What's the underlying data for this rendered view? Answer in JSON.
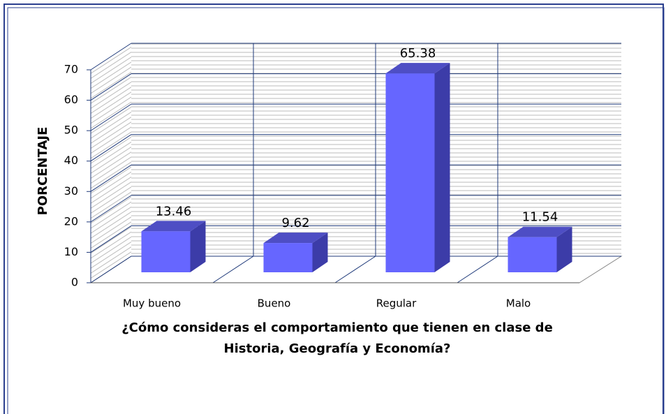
{
  "chart_data": {
    "type": "bar3d",
    "categories": [
      "Muy bueno",
      "Bueno",
      "Regular",
      "Malo"
    ],
    "values": [
      13.46,
      9.62,
      65.38,
      11.54
    ],
    "color": "#6666ff",
    "ylabel": "PORCENTAJE",
    "xlabel": [
      "¿Cómo consideras el comportamiento que tienen en clase de",
      "Historia, Geografía y Economía?"
    ],
    "ylim": [
      0,
      70
    ],
    "yticks": [
      0,
      10,
      20,
      30,
      40,
      50,
      60,
      70
    ],
    "grid": true
  }
}
